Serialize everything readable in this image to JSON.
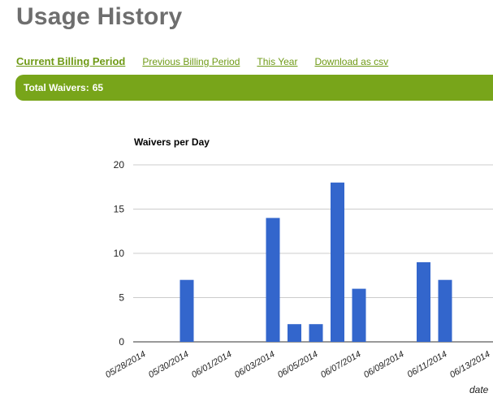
{
  "page": {
    "title": "Usage History"
  },
  "nav": {
    "items": [
      {
        "label": "Current Billing Period",
        "active": true
      },
      {
        "label": "Previous Billing Period",
        "active": false
      },
      {
        "label": "This Year",
        "active": false
      },
      {
        "label": "Download as csv",
        "active": false
      }
    ]
  },
  "summary": {
    "label": "Total Waivers:",
    "value": "65"
  },
  "colors": {
    "accent": "#78a51a",
    "link": "#6f9a16",
    "bar": "#3366cc"
  },
  "chart_data": {
    "type": "bar",
    "title": "Waivers per Day",
    "xlabel": "date",
    "ylabel": "",
    "ylim": [
      0,
      20
    ],
    "yticks": [
      0,
      5,
      10,
      15,
      20
    ],
    "grid": true,
    "x_tick_labels": [
      "05/28/2014",
      "05/30/2014",
      "06/01/2014",
      "06/03/2014",
      "06/05/2014",
      "06/07/2014",
      "06/09/2014",
      "06/11/2014",
      "06/13/2014"
    ],
    "categories": [
      "05/28/2014",
      "05/29/2014",
      "05/30/2014",
      "05/31/2014",
      "06/01/2014",
      "06/02/2014",
      "06/03/2014",
      "06/04/2014",
      "06/05/2014",
      "06/06/2014",
      "06/07/2014",
      "06/08/2014",
      "06/09/2014",
      "06/10/2014",
      "06/11/2014",
      "06/12/2014",
      "06/13/2014",
      "06/14/2014"
    ],
    "values": [
      0,
      0,
      7,
      0,
      0,
      0,
      14,
      2,
      2,
      18,
      6,
      0,
      0,
      9,
      7,
      0,
      0,
      0
    ]
  }
}
